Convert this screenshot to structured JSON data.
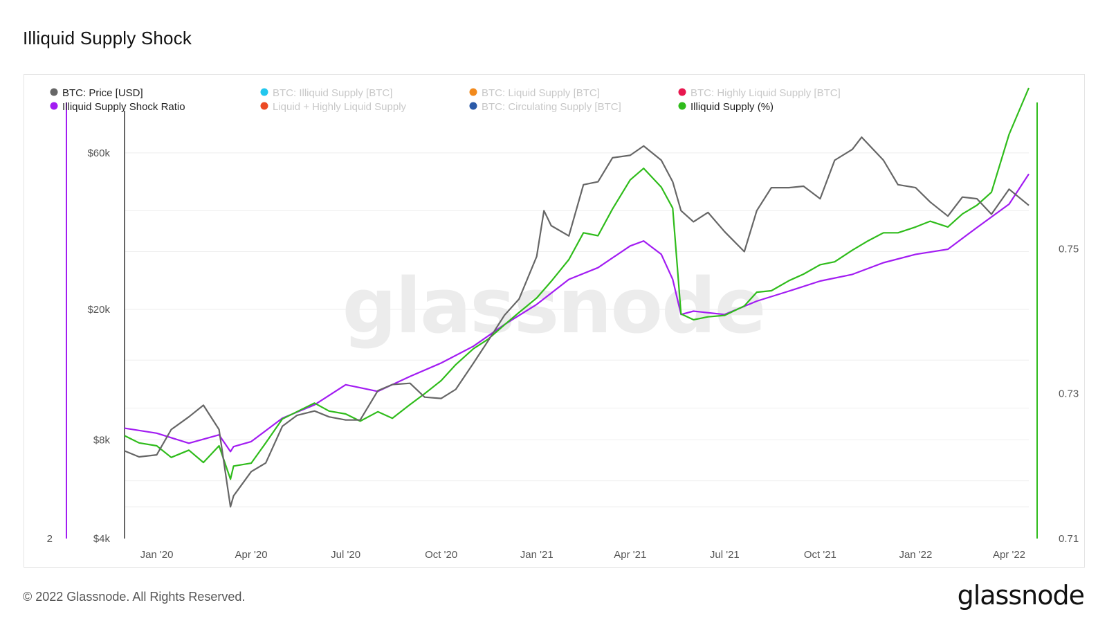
{
  "title": "Illiquid Supply Shock",
  "footer": "© 2022 Glassnode. All Rights Reserved.",
  "brand": "glassnode",
  "watermark": "glassnode",
  "chart_data": {
    "type": "line",
    "title": "Illiquid Supply Shock",
    "legend_placement": "top",
    "legend": [
      {
        "label": "BTC: Price [USD]",
        "color": "#666666",
        "active": true
      },
      {
        "label": "BTC: Illiquid Supply [BTC]",
        "color": "#22c7ee",
        "active": false
      },
      {
        "label": "BTC: Liquid Supply [BTC]",
        "color": "#f28a1d",
        "active": false
      },
      {
        "label": "BTC: Highly Liquid Supply [BTC]",
        "color": "#e8174f",
        "active": false
      },
      {
        "label": "Illiquid Supply Shock Ratio",
        "color": "#a21cf2",
        "active": true
      },
      {
        "label": "Liquid + Highly Liquid Supply",
        "color": "#ec4a24",
        "active": false
      },
      {
        "label": "BTC: Circulating Supply [BTC]",
        "color": "#2b5aa8",
        "active": false
      },
      {
        "label": "Illiquid Supply (%)",
        "color": "#2fbc1b",
        "active": true
      }
    ],
    "x_ticks": [
      "Jan '20",
      "Apr '20",
      "Jul '20",
      "Oct '20",
      "Jan '21",
      "Apr '21",
      "Jul '21",
      "Oct '21",
      "Jan '22",
      "Apr '22"
    ],
    "x_range": [
      "2019-12-01",
      "2022-04-20"
    ],
    "price_axis": {
      "scale": "log",
      "ticks": [
        "$4k",
        "$8k",
        "$20k",
        "$60k"
      ],
      "tick_values": [
        4000,
        8000,
        20000,
        60000
      ],
      "range": [
        4000,
        75000
      ]
    },
    "ratio_axis": {
      "ticks": [
        "2"
      ]
    },
    "pct_axis": {
      "ticks": [
        "0.71",
        "0.73",
        "0.75"
      ],
      "tick_values": [
        0.71,
        0.73,
        0.75
      ],
      "range": [
        0.71,
        0.77
      ]
    },
    "grid": true,
    "series": [
      {
        "name": "BTC: Price [USD]",
        "axis": "price",
        "color": "#666666",
        "x": [
          "2019-12-01",
          "2019-12-15",
          "2020-01-01",
          "2020-01-15",
          "2020-02-01",
          "2020-02-15",
          "2020-03-01",
          "2020-03-12",
          "2020-03-15",
          "2020-04-01",
          "2020-04-15",
          "2020-05-01",
          "2020-05-15",
          "2020-06-01",
          "2020-06-15",
          "2020-07-01",
          "2020-07-15",
          "2020-08-01",
          "2020-08-15",
          "2020-09-01",
          "2020-09-15",
          "2020-10-01",
          "2020-10-15",
          "2020-11-01",
          "2020-11-15",
          "2020-12-01",
          "2020-12-15",
          "2021-01-01",
          "2021-01-08",
          "2021-01-15",
          "2021-02-01",
          "2021-02-15",
          "2021-03-01",
          "2021-03-15",
          "2021-04-01",
          "2021-04-14",
          "2021-05-01",
          "2021-05-12",
          "2021-05-20",
          "2021-06-01",
          "2021-06-15",
          "2021-07-01",
          "2021-07-20",
          "2021-08-01",
          "2021-08-15",
          "2021-09-01",
          "2021-09-15",
          "2021-10-01",
          "2021-10-15",
          "2021-11-01",
          "2021-11-10",
          "2021-12-01",
          "2021-12-15",
          "2022-01-01",
          "2022-01-15",
          "2022-02-01",
          "2022-02-15",
          "2022-03-01",
          "2022-03-15",
          "2022-04-01",
          "2022-04-20"
        ],
        "values": [
          7400,
          7100,
          7200,
          8600,
          9400,
          10200,
          8600,
          5000,
          5400,
          6400,
          6800,
          8800,
          9500,
          9800,
          9400,
          9200,
          9200,
          11300,
          11800,
          11900,
          10800,
          10700,
          11400,
          13700,
          16000,
          19200,
          21500,
          29000,
          40000,
          36000,
          33500,
          48000,
          49000,
          58000,
          59000,
          63000,
          57000,
          49000,
          40000,
          37000,
          39500,
          34500,
          30000,
          40000,
          47000,
          47000,
          47500,
          43500,
          57000,
          61500,
          67000,
          57000,
          48000,
          47000,
          42500,
          38500,
          44000,
          43500,
          39000,
          46500,
          41500
        ]
      },
      {
        "name": "Illiquid Supply Shock Ratio",
        "axis": "ratio",
        "color": "#a21cf2",
        "x": [
          "2019-12-01",
          "2020-01-01",
          "2020-02-01",
          "2020-03-01",
          "2020-03-12",
          "2020-03-15",
          "2020-04-01",
          "2020-05-01",
          "2020-06-01",
          "2020-07-01",
          "2020-08-01",
          "2020-09-01",
          "2020-10-01",
          "2020-11-01",
          "2020-12-01",
          "2021-01-01",
          "2021-02-01",
          "2021-03-01",
          "2021-04-01",
          "2021-04-14",
          "2021-05-01",
          "2021-05-12",
          "2021-05-20",
          "2021-06-01",
          "2021-07-01",
          "2021-08-01",
          "2021-09-01",
          "2021-10-01",
          "2021-11-01",
          "2021-12-01",
          "2022-01-01",
          "2022-02-01",
          "2022-03-01",
          "2022-04-01",
          "2022-04-20"
        ],
        "values": [
          2.66,
          2.63,
          2.57,
          2.62,
          2.52,
          2.55,
          2.58,
          2.72,
          2.8,
          2.92,
          2.88,
          2.97,
          3.05,
          3.15,
          3.28,
          3.4,
          3.55,
          3.62,
          3.75,
          3.78,
          3.7,
          3.55,
          3.34,
          3.36,
          3.34,
          3.42,
          3.48,
          3.54,
          3.58,
          3.65,
          3.7,
          3.73,
          3.86,
          4.0,
          4.18
        ]
      },
      {
        "name": "Illiquid Supply (%)",
        "axis": "pct",
        "color": "#2fbc1b",
        "x": [
          "2019-12-01",
          "2019-12-15",
          "2020-01-01",
          "2020-01-15",
          "2020-02-01",
          "2020-02-15",
          "2020-03-01",
          "2020-03-12",
          "2020-03-15",
          "2020-04-01",
          "2020-04-15",
          "2020-05-01",
          "2020-05-15",
          "2020-06-01",
          "2020-06-15",
          "2020-07-01",
          "2020-07-15",
          "2020-08-01",
          "2020-08-15",
          "2020-09-01",
          "2020-09-15",
          "2020-10-01",
          "2020-10-15",
          "2020-11-01",
          "2020-11-15",
          "2020-12-01",
          "2020-12-15",
          "2021-01-01",
          "2021-01-15",
          "2021-02-01",
          "2021-02-15",
          "2021-03-01",
          "2021-03-15",
          "2021-04-01",
          "2021-04-14",
          "2021-05-01",
          "2021-05-12",
          "2021-05-20",
          "2021-06-01",
          "2021-06-15",
          "2021-07-01",
          "2021-07-20",
          "2021-08-01",
          "2021-08-15",
          "2021-09-01",
          "2021-09-15",
          "2021-10-01",
          "2021-10-15",
          "2021-11-01",
          "2021-11-15",
          "2021-12-01",
          "2021-12-15",
          "2022-01-01",
          "2022-01-15",
          "2022-02-01",
          "2022-02-15",
          "2022-03-01",
          "2022-03-15",
          "2022-04-01",
          "2022-04-20"
        ],
        "values": [
          0.7242,
          0.7232,
          0.7228,
          0.7212,
          0.7222,
          0.7205,
          0.7228,
          0.7182,
          0.72,
          0.7204,
          0.7232,
          0.7265,
          0.7275,
          0.7287,
          0.7276,
          0.7272,
          0.7262,
          0.7275,
          0.7266,
          0.7285,
          0.73,
          0.7318,
          0.734,
          0.7362,
          0.7375,
          0.7395,
          0.7412,
          0.7432,
          0.7455,
          0.7485,
          0.7522,
          0.7518,
          0.7555,
          0.7595,
          0.7611,
          0.7585,
          0.7556,
          0.741,
          0.7402,
          0.7406,
          0.7408,
          0.7421,
          0.744,
          0.7442,
          0.7456,
          0.7465,
          0.7478,
          0.7482,
          0.7498,
          0.751,
          0.7522,
          0.7522,
          0.753,
          0.7538,
          0.753,
          0.7548,
          0.756,
          0.7578,
          0.7658,
          0.7722
        ]
      }
    ]
  }
}
